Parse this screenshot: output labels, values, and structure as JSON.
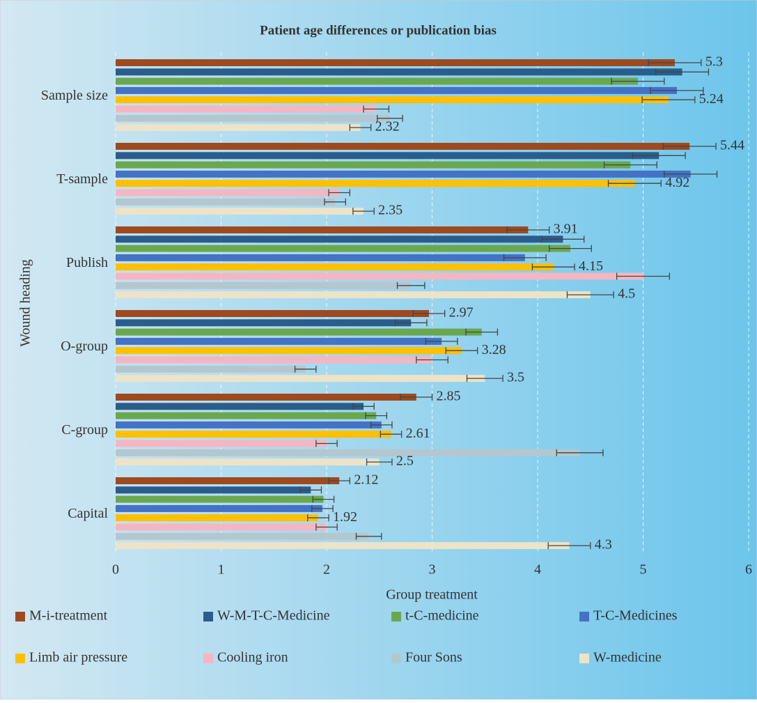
{
  "chart_data": {
    "type": "bar",
    "orientation": "horizontal",
    "title": "Patient age differences or publication bias",
    "x_label": "Group treatment",
    "y_label": "Wound heading",
    "categories": [
      "Sample size",
      "T-sample",
      "Publish",
      "O-group",
      "C-group",
      "Capital"
    ],
    "xlim": [
      0,
      6
    ],
    "xticks": [
      0,
      1,
      2,
      3,
      4,
      5,
      6
    ],
    "grid": true,
    "series": [
      {
        "name": "M-i-treatment",
        "color": "#9e4a1e",
        "values": [
          5.3,
          5.44,
          3.91,
          2.97,
          2.85,
          2.12
        ],
        "errors": [
          0.25,
          0.25,
          0.2,
          0.15,
          0.15,
          0.1
        ],
        "labels": true
      },
      {
        "name": "W-M-T-C-Medicine",
        "color": "#2a5d8c",
        "values": [
          5.37,
          5.15,
          4.24,
          2.8,
          2.35,
          1.85
        ],
        "errors": [
          0.25,
          0.25,
          0.2,
          0.15,
          0.1,
          0.1
        ],
        "labels": false
      },
      {
        "name": "t-C-medicine",
        "color": "#6aa84f",
        "values": [
          4.95,
          4.88,
          4.31,
          3.47,
          2.47,
          1.97
        ],
        "errors": [
          0.25,
          0.25,
          0.2,
          0.15,
          0.1,
          0.1
        ],
        "labels": false
      },
      {
        "name": "T-C-Medicines",
        "color": "#4472c4",
        "values": [
          5.32,
          5.45,
          3.88,
          3.09,
          2.52,
          1.96
        ],
        "errors": [
          0.25,
          0.25,
          0.2,
          0.15,
          0.1,
          0.1
        ],
        "labels": false
      },
      {
        "name": "Limb air pressure",
        "color": "#ffc000",
        "values": [
          5.24,
          4.92,
          4.15,
          3.28,
          2.61,
          1.92
        ],
        "errors": [
          0.25,
          0.25,
          0.2,
          0.15,
          0.1,
          0.1
        ],
        "labels": true
      },
      {
        "name": "Cooling iron",
        "color": "#f4b6c2",
        "values": [
          2.47,
          2.12,
          5.0,
          3.0,
          2.0,
          2.0
        ],
        "errors": [
          0.12,
          0.1,
          0.25,
          0.15,
          0.1,
          0.1
        ],
        "labels": false
      },
      {
        "name": "Four Sons",
        "color": "#b4c7cf",
        "values": [
          2.6,
          2.08,
          2.8,
          1.8,
          4.4,
          2.4
        ],
        "errors": [
          0.12,
          0.1,
          0.13,
          0.1,
          0.22,
          0.12
        ],
        "labels": false
      },
      {
        "name": "W-medicine",
        "color": "#ede3c8",
        "values": [
          2.32,
          2.35,
          4.5,
          3.5,
          2.5,
          4.3
        ],
        "errors": [
          0.1,
          0.1,
          0.22,
          0.17,
          0.12,
          0.2
        ],
        "labels": true
      }
    ]
  }
}
